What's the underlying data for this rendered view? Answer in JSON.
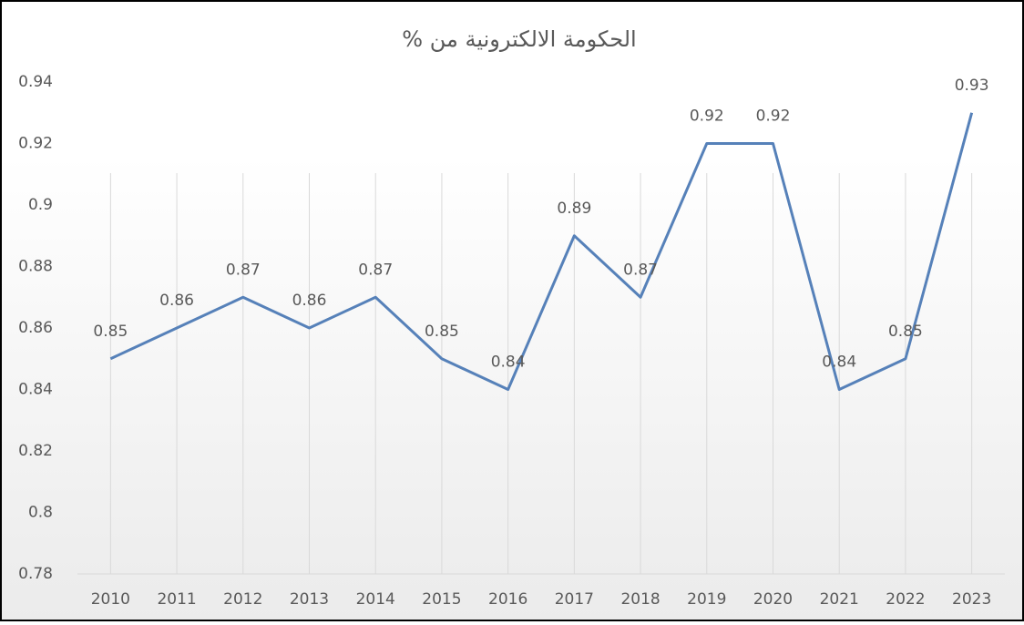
{
  "chart_data": {
    "type": "line",
    "title": "الحكومة الالكترونية من %",
    "categories": [
      "2010",
      "2011",
      "2012",
      "2013",
      "2014",
      "2015",
      "2016",
      "2017",
      "2018",
      "2019",
      "2020",
      "2021",
      "2022",
      "2023"
    ],
    "values": [
      0.85,
      0.86,
      0.87,
      0.86,
      0.87,
      0.85,
      0.84,
      0.89,
      0.87,
      0.92,
      0.92,
      0.84,
      0.85,
      0.93
    ],
    "color": "#5681b9",
    "ylim": [
      0.78,
      0.94
    ],
    "yticks": [
      0.78,
      0.8,
      0.82,
      0.84,
      0.86,
      0.88,
      0.9,
      0.92,
      0.94
    ]
  }
}
